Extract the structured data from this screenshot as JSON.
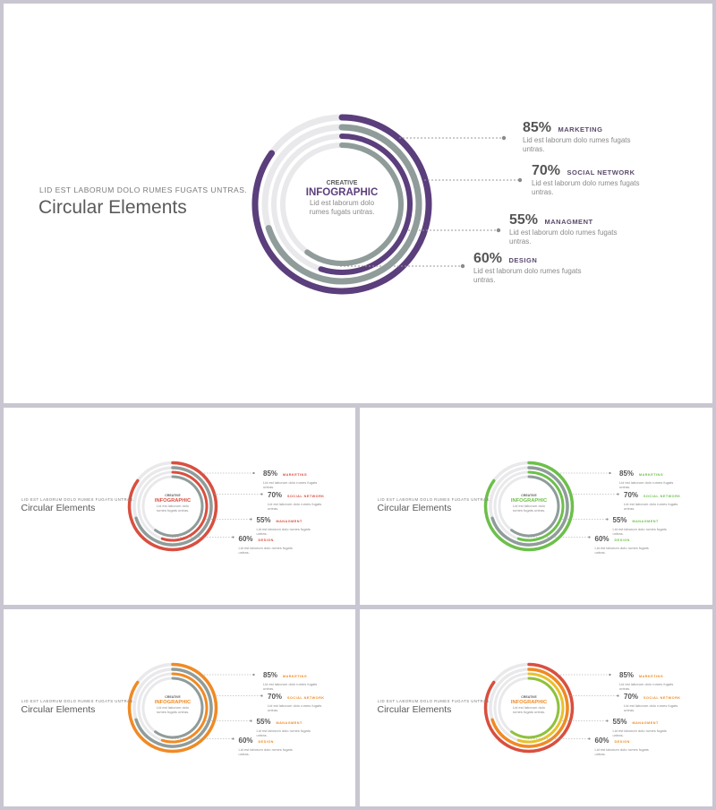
{
  "kicker": "LID EST LABORUM DOLO RUMES FUGATS UNTRAS.",
  "title": "Circular Elements",
  "center": {
    "label1": "CREATIVE",
    "label2": "INFOGRAPHIC",
    "desc": "Lid est laborum dolo rumes fugats untras."
  },
  "items": [
    {
      "value": "85%",
      "label": "MARKETING",
      "desc": "Lid est laborum dolo rumes fugats untras.",
      "progress": 0.85
    },
    {
      "value": "70%",
      "label": "SOCIAL NETWORK",
      "desc": "Lid est laborum dolo rumes fugats untras.",
      "progress": 0.7
    },
    {
      "value": "55%",
      "label": "MANAGMENT",
      "desc": "Lid est laborum dolo rumes fugats untras.",
      "progress": 0.55
    },
    {
      "value": "60%",
      "label": "DESIGN",
      "desc": "Lid est laborum dolo rumes fugats untras.",
      "progress": 0.6
    }
  ],
  "variants": [
    {
      "accent": "#5b3e7c",
      "rings": [
        "#5b3e7c",
        "#8f9c9a",
        "#5b3e7c",
        "#8f9c9a"
      ]
    },
    {
      "accent": "#d94f3f",
      "rings": [
        "#d94f3f",
        "#8f9c9a",
        "#d94f3f",
        "#8f9c9a"
      ]
    },
    {
      "accent": "#6cc04a",
      "rings": [
        "#6cc04a",
        "#8f9c9a",
        "#6cc04a",
        "#8f9c9a"
      ]
    },
    {
      "accent": "#f08a24",
      "rings": [
        "#f08a24",
        "#8f9c9a",
        "#f08a24",
        "#8f9c9a"
      ]
    },
    {
      "accent": "#f08a24",
      "rings": [
        "#d94f3f",
        "#f08a24",
        "#e7c22b",
        "#8fc23b"
      ]
    }
  ]
}
